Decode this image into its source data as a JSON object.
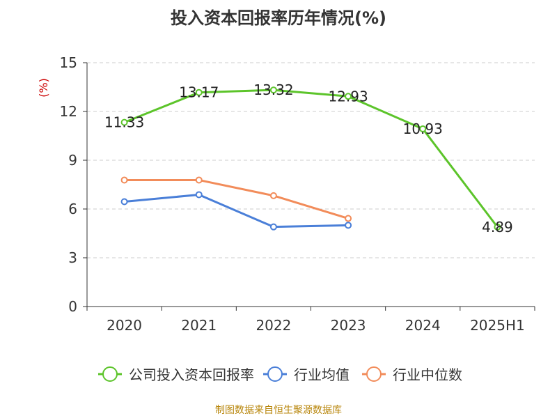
{
  "chart_data": {
    "type": "line",
    "title": "投入资本回报率历年情况(%)",
    "ylabel": "(%)",
    "xlabel": "",
    "categories": [
      "2020",
      "2021",
      "2022",
      "2023",
      "2024",
      "2025H1"
    ],
    "ylim": [
      0,
      15
    ],
    "yticks": [
      0,
      3,
      6,
      9,
      12,
      15
    ],
    "grid": true,
    "legend_position": "bottom",
    "series": [
      {
        "name": "公司投入资本回报率",
        "values": [
          11.33,
          13.17,
          13.32,
          12.93,
          10.93,
          4.89
        ],
        "color": "#5cc42a",
        "show_labels": true
      },
      {
        "name": "行业均值",
        "values": [
          6.45,
          6.88,
          4.9,
          5.0,
          null,
          null
        ],
        "color": "#4a7fd8",
        "show_labels": false
      },
      {
        "name": "行业中位数",
        "values": [
          7.78,
          7.78,
          6.82,
          5.42,
          null,
          null
        ],
        "color": "#f28c5a",
        "show_labels": false
      }
    ]
  },
  "source": "制图数据来自恒生聚源数据库"
}
